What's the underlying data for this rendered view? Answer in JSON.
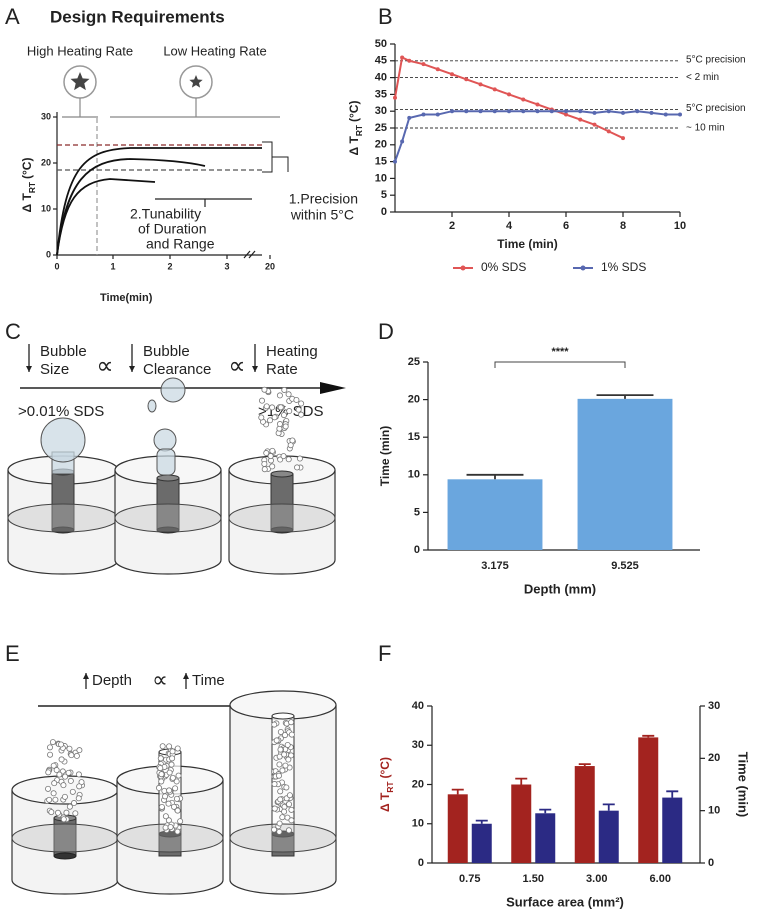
{
  "panel_labels": [
    "A",
    "B",
    "C",
    "D",
    "E",
    "F"
  ],
  "panel_a": {
    "title": "Design Requirements",
    "high_rate": "High Heating Rate",
    "low_rate": "Low Heating Rate",
    "ylabel": {
      "main": "Δ T",
      "sub": "RT",
      "unit": "(°C)"
    },
    "xlabel": "Time(min)",
    "yticks": [
      0,
      10,
      20,
      30
    ],
    "xticks": [
      0,
      1,
      2,
      3,
      20
    ],
    "precision": [
      "1.Precision",
      "within 5°C"
    ],
    "tunability": [
      "2.Tunability",
      "of Duration",
      "and Range"
    ]
  },
  "panel_c": {
    "steps": [
      [
        "Bubble",
        "Size"
      ],
      [
        "Bubble",
        "Clearance"
      ],
      [
        "Heating",
        "Rate"
      ]
    ],
    "relation": "∝",
    "low_label": ">0.01% SDS",
    "high_label": ">1% SDS"
  },
  "panel_e": {
    "depth": "Depth",
    "relation": "∝",
    "time": "Time"
  },
  "chart_data": [
    {
      "type": "line",
      "xlabel": "Time (min)",
      "ylabel": {
        "main": "Δ T",
        "sub": "RT",
        "unit": "(°C)"
      },
      "xlim": [
        0,
        10
      ],
      "xticks": [
        2,
        4,
        6,
        8,
        10
      ],
      "ylim": [
        0,
        50
      ],
      "yticks": [
        0,
        5,
        10,
        15,
        20,
        25,
        30,
        35,
        40,
        45,
        50
      ],
      "legend": "bottom",
      "reference_lines": [
        {
          "value": 45,
          "label": "5°C precision"
        },
        {
          "value": 40,
          "label": "< 2 min"
        },
        {
          "value": 30.5,
          "label": "5°C precision"
        },
        {
          "value": 25,
          "label": "~ 10 min"
        }
      ],
      "series": [
        {
          "name": "0% SDS",
          "color": "#e05555",
          "x": [
            0,
            0.25,
            0.5,
            1,
            1.5,
            2,
            2.5,
            3,
            3.5,
            4,
            4.5,
            5,
            5.5,
            6,
            6.5,
            7,
            7.5,
            8
          ],
          "values": [
            34,
            46,
            45,
            44,
            42.5,
            41,
            39.5,
            38,
            36.5,
            35,
            33.5,
            32,
            30.5,
            29,
            27.5,
            26,
            24,
            22
          ]
        },
        {
          "name": "1% SDS",
          "color": "#5868b0",
          "x": [
            0,
            0.25,
            0.5,
            1,
            1.5,
            2,
            2.5,
            3,
            3.5,
            4,
            4.5,
            5,
            5.5,
            6,
            6.5,
            7,
            7.5,
            8,
            8.5,
            9,
            9.5,
            10
          ],
          "values": [
            15,
            21,
            28,
            29,
            29,
            30,
            30,
            30,
            30,
            30,
            30,
            30,
            30,
            30,
            30,
            29.5,
            30,
            29.5,
            30,
            29.5,
            29,
            29
          ]
        }
      ]
    },
    {
      "type": "bar",
      "xlabel": "Depth (mm)",
      "ylabel": "Time (min)",
      "categories": [
        "3.175",
        "9.525"
      ],
      "values": [
        9.4,
        20.1
      ],
      "errors": [
        0.6,
        0.5
      ],
      "color": "#6aa6de",
      "ylim": [
        0,
        25
      ],
      "yticks": [
        0,
        5,
        10,
        15,
        20,
        25
      ],
      "significance": "****"
    },
    {
      "type": "bar",
      "xlabel": "Surface area (mm²)",
      "ylabel": {
        "main": "Δ T",
        "sub": "RT",
        "unit": "(°C)"
      },
      "y2label": "Time  (min)",
      "categories": [
        "0.75",
        "1.50",
        "3.00",
        "6.00"
      ],
      "ylim": [
        0,
        40
      ],
      "yticks": [
        0,
        10,
        20,
        30,
        40
      ],
      "y2lim": [
        0,
        30
      ],
      "y2ticks": [
        0,
        10,
        20,
        30
      ],
      "series": [
        {
          "color": "#a3231f",
          "values": [
            17.5,
            20,
            24.7,
            32
          ],
          "errors": [
            1.2,
            1.5,
            0.5,
            0.4
          ]
        },
        {
          "color": "#2b2a84",
          "axis": "y2",
          "values": [
            7.5,
            9.5,
            10,
            12.5
          ],
          "errors": [
            0.6,
            0.7,
            1.2,
            1.2
          ]
        }
      ]
    }
  ]
}
